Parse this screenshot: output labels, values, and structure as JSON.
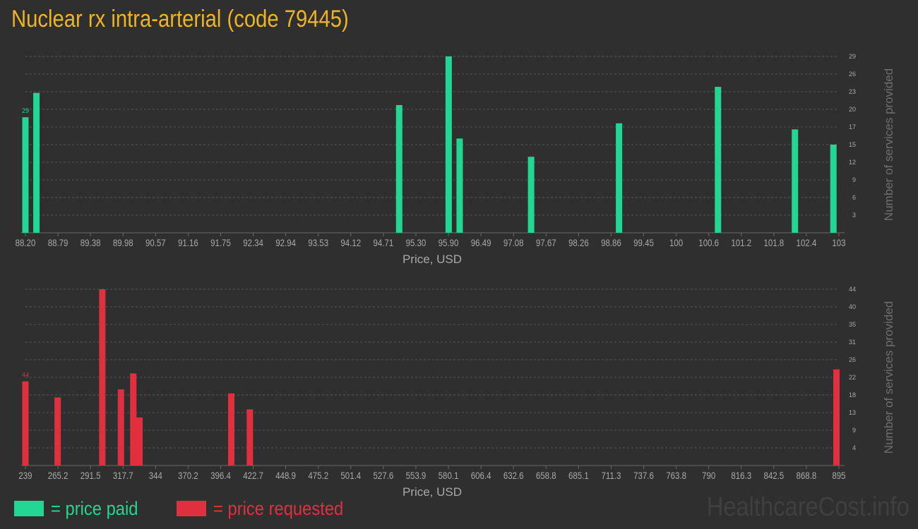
{
  "title": "Nuclear rx intra-arterial (code 79445)",
  "colors": {
    "paid": "#22d694",
    "requested": "#e03040",
    "title": "#f0b323",
    "grid": "#555555",
    "text": "#a8a8a8"
  },
  "legend": {
    "paid_label": "= price paid",
    "requested_label": "= price requested"
  },
  "watermark": "HealthcareCost.info",
  "chart_data": [
    {
      "type": "bar",
      "name": "price paid",
      "xlabel": "Price, USD",
      "ylabel": "Number of services provided",
      "xlim": [
        88.2,
        103
      ],
      "ylim": [
        0,
        29
      ],
      "x_ticks": [
        "88.20",
        "88.79",
        "89.38",
        "89.98",
        "90.57",
        "91.16",
        "91.75",
        "92.34",
        "92.94",
        "93.53",
        "94.12",
        "94.71",
        "95.30",
        "95.90",
        "96.49",
        "97.08",
        "97.67",
        "98.26",
        "98.86",
        "99.45",
        "100",
        "100.6",
        "101.2",
        "101.8",
        "102.4",
        "103"
      ],
      "y_ticks": [
        "3",
        "6",
        "9",
        "12",
        "15",
        "17",
        "20",
        "23",
        "26",
        "29"
      ],
      "bars": [
        {
          "x": 88.2,
          "y": 19
        },
        {
          "x": 88.4,
          "y": 23
        },
        {
          "x": 95.0,
          "y": 21
        },
        {
          "x": 95.9,
          "y": 29
        },
        {
          "x": 96.1,
          "y": 15.5
        },
        {
          "x": 97.4,
          "y": 12.5
        },
        {
          "x": 99.0,
          "y": 18
        },
        {
          "x": 100.8,
          "y": 24
        },
        {
          "x": 102.2,
          "y": 17
        },
        {
          "x": 102.9,
          "y": 14.5
        }
      ],
      "max_label": "29",
      "color": "#22d694"
    },
    {
      "type": "bar",
      "name": "price requested",
      "xlabel": "Price, USD",
      "ylabel": "Number of services provided",
      "xlim": [
        239,
        895
      ],
      "ylim": [
        0,
        44
      ],
      "x_ticks": [
        "239",
        "265.2",
        "291.5",
        "317.7",
        "344",
        "370.2",
        "396.4",
        "422.7",
        "448.9",
        "475.2",
        "501.4",
        "527.6",
        "553.9",
        "580.1",
        "606.4",
        "632.6",
        "658.8",
        "685.1",
        "711.3",
        "737.6",
        "763.8",
        "790",
        "816.3",
        "842.5",
        "868.8",
        "895"
      ],
      "y_ticks": [
        "4",
        "9",
        "13",
        "18",
        "22",
        "26",
        "31",
        "35",
        "40",
        "44"
      ],
      "bars": [
        {
          "x": 239,
          "y": 21
        },
        {
          "x": 265,
          "y": 17
        },
        {
          "x": 301,
          "y": 44
        },
        {
          "x": 316,
          "y": 19
        },
        {
          "x": 326,
          "y": 23
        },
        {
          "x": 331,
          "y": 12
        },
        {
          "x": 405,
          "y": 18
        },
        {
          "x": 420,
          "y": 14
        },
        {
          "x": 893,
          "y": 24
        }
      ],
      "max_label": "44",
      "color": "#e03040"
    }
  ]
}
